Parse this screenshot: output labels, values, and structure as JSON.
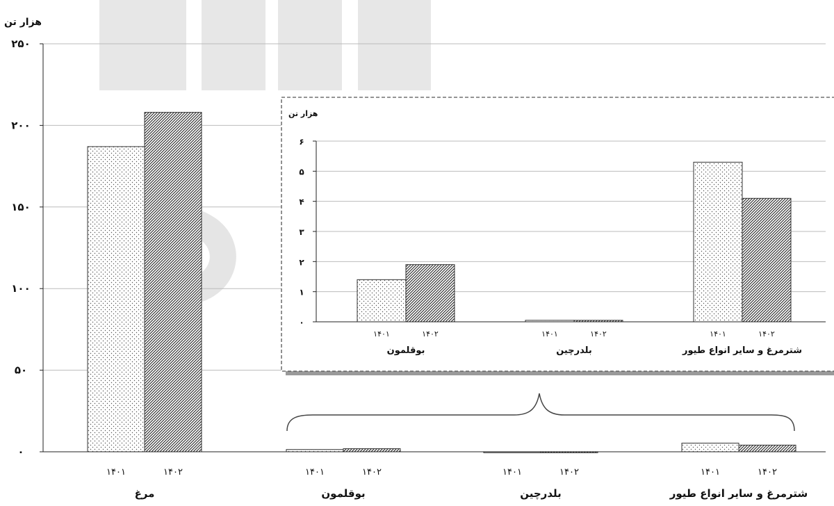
{
  "chart_data": [
    {
      "type": "bar",
      "categories": [
        "مرغ",
        "بوقلمون",
        "بلدرچین",
        "شترمرغ و سایر انواع طیور"
      ],
      "series": [
        {
          "name": "۱۴۰۱",
          "values": [
            187,
            1.4,
            0.05,
            5.3
          ]
        },
        {
          "name": "۱۴۰۲",
          "values": [
            208,
            1.9,
            0.05,
            4.1
          ]
        }
      ],
      "ylabel": "هزار تن",
      "ylim": [
        0,
        250
      ],
      "yticks": [
        "۰",
        "۵۰",
        "۱۰۰",
        "۱۵۰",
        "۲۰۰",
        "۲۵۰"
      ],
      "grid": true
    },
    {
      "type": "bar",
      "categories": [
        "بوقلمون",
        "بلدرچین",
        "شترمرغ و سایر انواع طیور"
      ],
      "series": [
        {
          "name": "۱۴۰۱",
          "values": [
            1.4,
            0.05,
            5.3
          ]
        },
        {
          "name": "۱۴۰۲",
          "values": [
            1.9,
            0.05,
            4.1
          ]
        }
      ],
      "ylabel": "هزار تن",
      "ylim": [
        0,
        6
      ],
      "yticks": [
        "۰",
        "۱",
        "۲",
        "۳",
        "۴",
        "۵",
        "۶"
      ],
      "grid": true
    }
  ],
  "colors": {
    "bar_outline": "#333333",
    "grid": "#bbbbbb",
    "axis": "#222222",
    "watermark": "#d0d0d0"
  }
}
